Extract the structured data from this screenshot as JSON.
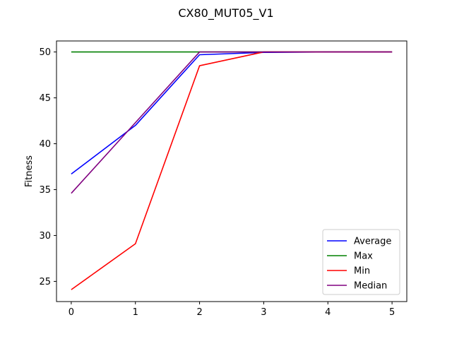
{
  "chart_data": {
    "type": "line",
    "title": "CX80_MUT05_V1",
    "xlabel": "",
    "ylabel": "Fitness",
    "x": [
      0,
      1,
      2,
      3,
      4,
      5
    ],
    "xlim": [
      -0.23,
      5.23
    ],
    "ylim": [
      22.8,
      51.2
    ],
    "xticks": [
      0,
      1,
      2,
      3,
      4,
      5
    ],
    "yticks": [
      25,
      30,
      35,
      40,
      45,
      50
    ],
    "grid": false,
    "legend_position": "bottom-right",
    "series": [
      {
        "name": "Average",
        "color": "#0000ff",
        "values": [
          36.7,
          42.0,
          49.7,
          49.95,
          50.0,
          50.0
        ]
      },
      {
        "name": "Max",
        "color": "#008000",
        "values": [
          50.0,
          50.0,
          50.0,
          50.0,
          50.0,
          50.0
        ]
      },
      {
        "name": "Min",
        "color": "#ff0000",
        "values": [
          24.1,
          29.1,
          48.5,
          50.0,
          50.0,
          50.0
        ]
      },
      {
        "name": "Median",
        "color": "#800080",
        "values": [
          34.6,
          42.3,
          50.0,
          50.0,
          50.0,
          50.0
        ]
      }
    ]
  }
}
